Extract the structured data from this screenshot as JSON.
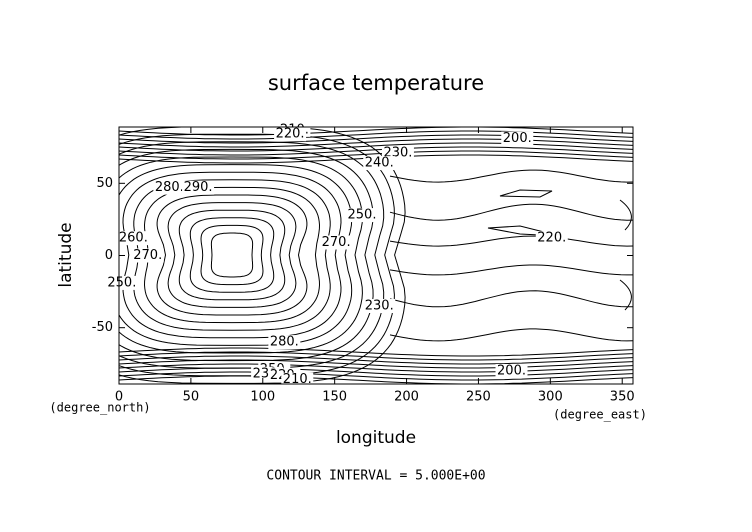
{
  "chart_data": {
    "type": "contour",
    "title": "surface temperature",
    "x_label": "longitude",
    "y_label": "latitude",
    "x_unit": "(degree_east)",
    "y_unit": "(degree_north)",
    "footer": "CONTOUR INTERVAL = 5.000E+00",
    "xlim": [
      0,
      357.5
    ],
    "ylim": [
      -89,
      89
    ],
    "xticks": [
      0,
      50,
      100,
      150,
      200,
      250,
      300,
      350
    ],
    "yticks": [
      -50,
      0,
      50
    ],
    "contour_labels": {
      "values": [
        210,
        220,
        200,
        230,
        240,
        280,
        290,
        250,
        260,
        270,
        270,
        220,
        250,
        230,
        280,
        250,
        230,
        220,
        210,
        200
      ],
      "value_labels": [
        "210.",
        "220.",
        "200.",
        "230.",
        "240.",
        "280.",
        "290.",
        "250.",
        "260.",
        "270.",
        "270.",
        "220.",
        "250.",
        "230.",
        "280.",
        "250.",
        "230.",
        "220.",
        "210.",
        "200."
      ],
      "x": [
        122,
        119,
        277,
        194,
        181,
        35,
        55,
        169,
        10,
        20,
        151,
        301,
        2,
        181,
        115,
        108,
        103,
        115,
        124,
        273
      ],
      "y": [
        87,
        84,
        81,
        71,
        64,
        47,
        47,
        28,
        12,
        0,
        9,
        12,
        -19,
        -35,
        -60,
        -79,
        -82,
        -83,
        -86,
        -80
      ]
    }
  }
}
